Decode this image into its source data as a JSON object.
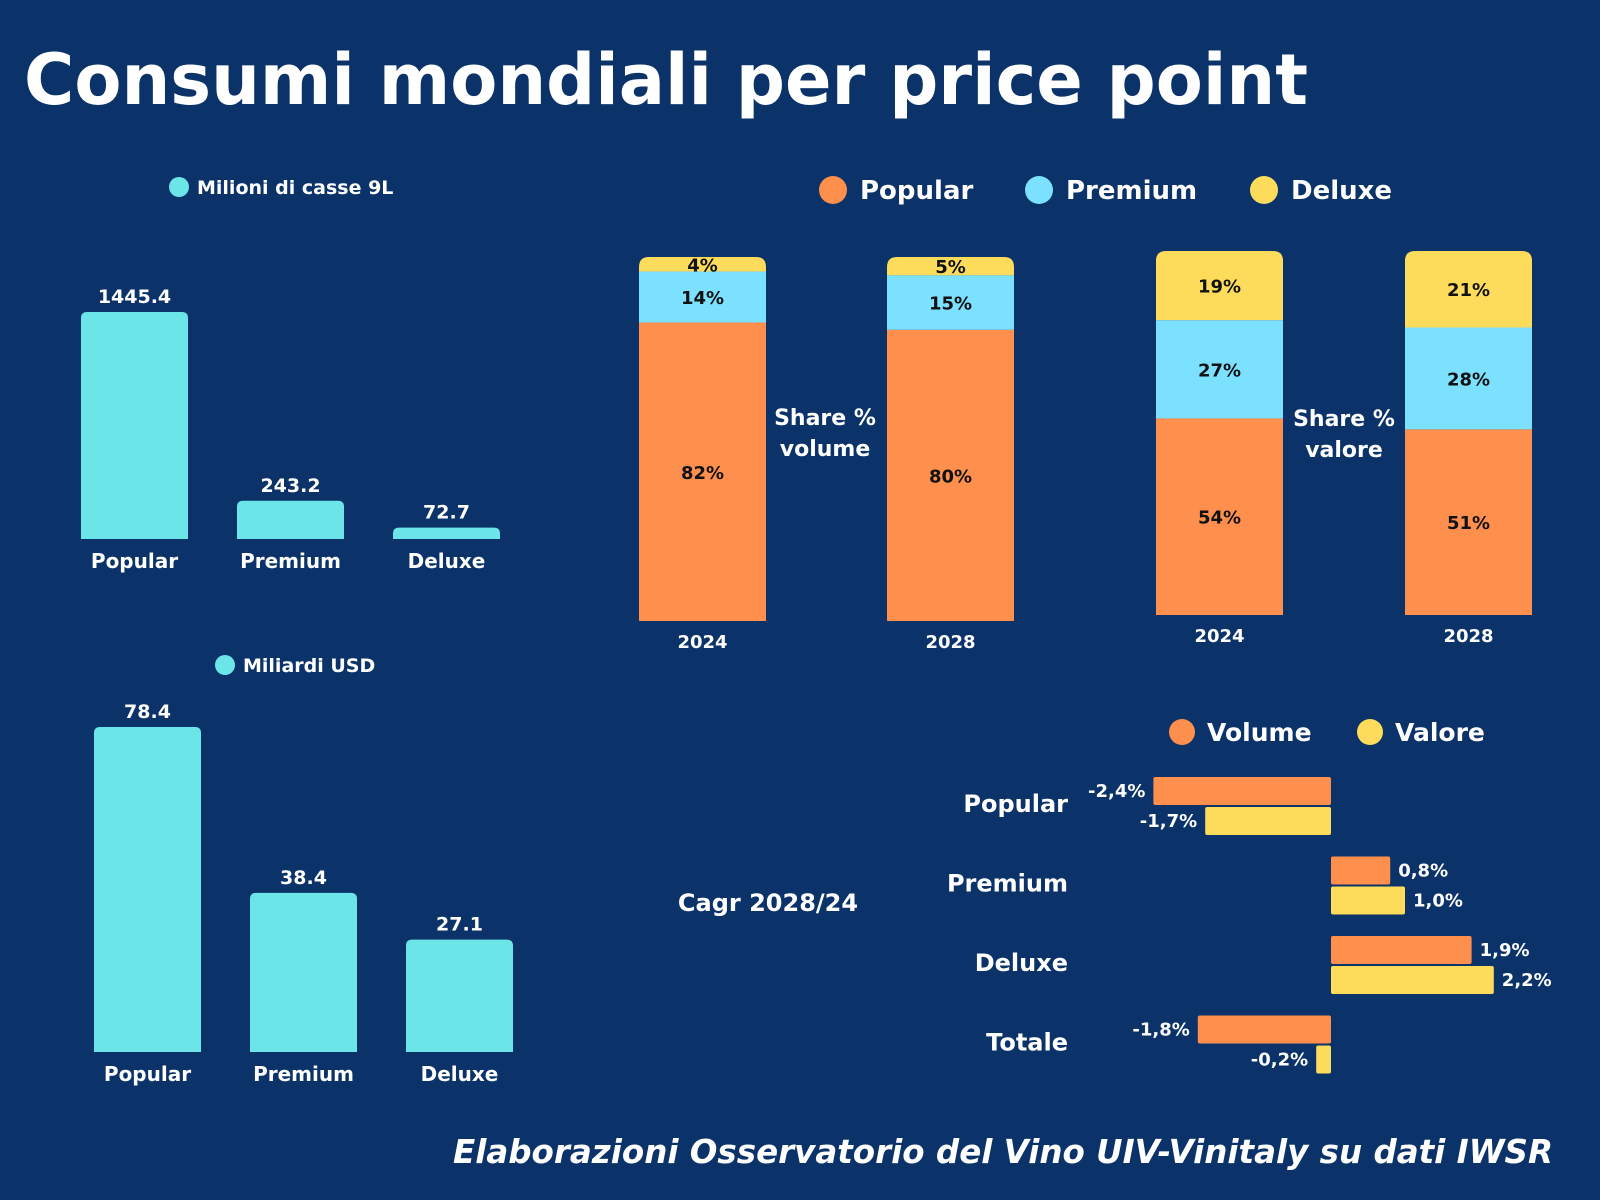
{
  "title": "Consumi mondiali per price point",
  "footer": "Elaborazioni Osservatorio del Vino UIV-Vinitaly su dati IWSR",
  "colors": {
    "background": "#0b3369",
    "cyan": "#6ce5e8",
    "popular": "#fe8f4d",
    "premium": "#7ce0ff",
    "deluxe": "#fddc5c",
    "volume": "#fe8f4d",
    "valore": "#fddc5c"
  },
  "chart_data": [
    {
      "type": "bar",
      "legend": "Milioni di casse 9L",
      "categories": [
        "Popular",
        "Premium",
        "Deluxe"
      ],
      "values": [
        1445.4,
        243.2,
        72.7
      ],
      "value_labels": [
        "1445.4",
        "243.2",
        "72.7"
      ],
      "color": "#6ce5e8"
    },
    {
      "type": "bar",
      "legend": "Miliardi USD",
      "categories": [
        "Popular",
        "Premium",
        "Deluxe"
      ],
      "values": [
        78.4,
        38.4,
        27.1
      ],
      "value_labels": [
        "78.4",
        "38.4",
        "27.1"
      ],
      "color": "#6ce5e8"
    },
    {
      "type": "bar",
      "stacked": true,
      "label": [
        "Share %",
        "volume"
      ],
      "categories": [
        "2024",
        "2028"
      ],
      "series": [
        {
          "name": "Popular",
          "values": [
            82,
            80
          ],
          "color": "#fe8f4d"
        },
        {
          "name": "Premium",
          "values": [
            14,
            15
          ],
          "color": "#7ce0ff"
        },
        {
          "name": "Deluxe",
          "values": [
            4,
            5
          ],
          "color": "#fddc5c"
        }
      ]
    },
    {
      "type": "bar",
      "stacked": true,
      "label": [
        "Share %",
        "valore"
      ],
      "categories": [
        "2024",
        "2028"
      ],
      "series": [
        {
          "name": "Popular",
          "values": [
            54,
            51
          ],
          "color": "#fe8f4d"
        },
        {
          "name": "Premium",
          "values": [
            27,
            28
          ],
          "color": "#7ce0ff"
        },
        {
          "name": "Deluxe",
          "values": [
            19,
            21
          ],
          "color": "#fddc5c"
        }
      ]
    },
    {
      "type": "bar",
      "orientation": "horizontal",
      "label": "Cagr 2028/24",
      "categories": [
        "Popular",
        "Premium",
        "Deluxe",
        "Totale"
      ],
      "series": [
        {
          "name": "Volume",
          "values": [
            -2.4,
            0.8,
            1.9,
            -1.8
          ],
          "labels": [
            "-2,4%",
            "0,8%",
            "1,9%",
            "-1,8%"
          ],
          "color": "#fe8f4d"
        },
        {
          "name": "Valore",
          "values": [
            -1.7,
            1.0,
            2.2,
            -0.2
          ],
          "labels": [
            "-1,7%",
            "1,0%",
            "2,2%",
            "-0,2%"
          ],
          "color": "#fddc5c"
        }
      ]
    }
  ],
  "share_legend": [
    "Popular",
    "Premium",
    "Deluxe"
  ]
}
